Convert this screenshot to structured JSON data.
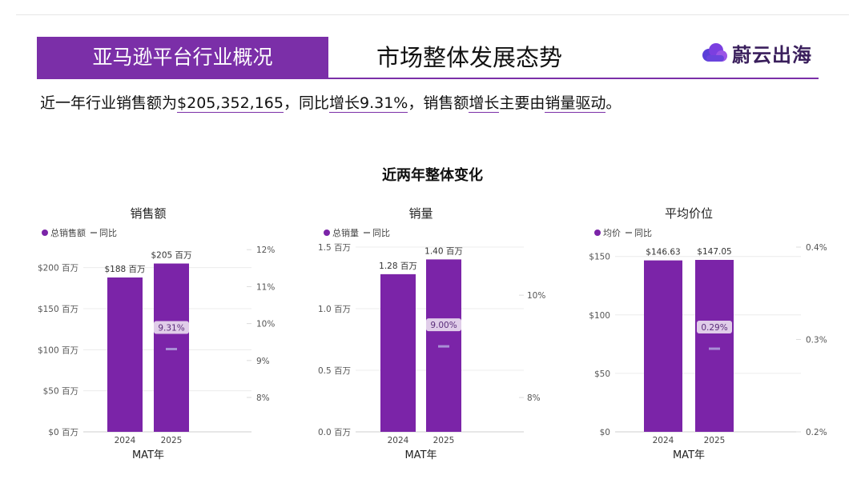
{
  "header": {
    "band_title": "亚马逊平台行业概况",
    "title": "市场整体发展态势",
    "brand_name": "蔚云出海"
  },
  "summary": {
    "p1": "近一年行业销售额为",
    "amount": "$205,352,165",
    "p2": "，同比",
    "growth": "增长9.31%",
    "p3": "，销售额",
    "growth_word": "增长",
    "p4": "主要由",
    "driver": "销量驱动",
    "p5": "。"
  },
  "section_title": "近两年整体变化",
  "colors": {
    "bar": "#7b24a8",
    "accent": "#7b2fa8",
    "yoy_marker": "#a98fd6",
    "label_bg": "#e8dcef"
  },
  "chart_data": [
    {
      "type": "bar",
      "title": "销售额",
      "legend": [
        "总销售额",
        "同比"
      ],
      "categories": [
        "2024",
        "2025"
      ],
      "values": [
        188,
        205
      ],
      "value_labels": [
        "$188 百万",
        "$205 百万"
      ],
      "ylim": [
        0,
        225
      ],
      "yticks": [
        {
          "v": 0,
          "label": "$0 百万"
        },
        {
          "v": 50,
          "label": "$50 百万"
        },
        {
          "v": 100,
          "label": "$100 百万"
        },
        {
          "v": 150,
          "label": "$150 百万"
        },
        {
          "v": 200,
          "label": "$200 百万"
        }
      ],
      "y2lim": [
        7.07,
        12.07
      ],
      "y2ticks": [
        {
          "v": 8,
          "label": "8%"
        },
        {
          "v": 9,
          "label": "9%"
        },
        {
          "v": 10,
          "label": "10%"
        },
        {
          "v": 11,
          "label": "11%"
        },
        {
          "v": 12,
          "label": "12%"
        }
      ],
      "yoy": {
        "category": "2025",
        "value": 9.31,
        "label": "9.31%"
      },
      "xlabel": "MAT年",
      "grid": true
    },
    {
      "type": "bar",
      "title": "销量",
      "legend": [
        "总销量",
        "同比"
      ],
      "categories": [
        "2024",
        "2025"
      ],
      "values": [
        1.28,
        1.4
      ],
      "value_labels": [
        "1.28 百万",
        "1.40 百万"
      ],
      "ylim": [
        0,
        1.5
      ],
      "yticks": [
        {
          "v": 0,
          "label": "0.0 百万"
        },
        {
          "v": 0.5,
          "label": "0.5 百万"
        },
        {
          "v": 1.0,
          "label": "1.0 百万"
        },
        {
          "v": 1.5,
          "label": "1.5 百万"
        }
      ],
      "y2lim": [
        7.33,
        10.94
      ],
      "y2ticks": [
        {
          "v": 8,
          "label": "8%"
        },
        {
          "v": 10,
          "label": "10%"
        }
      ],
      "yoy": {
        "category": "2025",
        "value": 9.0,
        "label": "9.00%"
      },
      "xlabel": "MAT年",
      "grid": true
    },
    {
      "type": "bar",
      "title": "平均价位",
      "legend": [
        "均价",
        "同比"
      ],
      "categories": [
        "2024",
        "2025"
      ],
      "values": [
        146.63,
        147.05
      ],
      "value_labels": [
        "$146.63",
        "$147.05"
      ],
      "ylim": [
        0,
        158
      ],
      "yticks": [
        {
          "v": 0,
          "label": "$0"
        },
        {
          "v": 50,
          "label": "$50"
        },
        {
          "v": 100,
          "label": "$100"
        },
        {
          "v": 150,
          "label": "$150"
        }
      ],
      "y2lim": [
        0.2,
        0.4
      ],
      "y2ticks": [
        {
          "v": 0.2,
          "label": "0.2%"
        },
        {
          "v": 0.3,
          "label": "0.3%"
        },
        {
          "v": 0.4,
          "label": "0.4%"
        }
      ],
      "yoy": {
        "category": "2025",
        "value": 0.29,
        "label": "0.29%"
      },
      "xlabel": "MAT年",
      "grid": true
    }
  ]
}
